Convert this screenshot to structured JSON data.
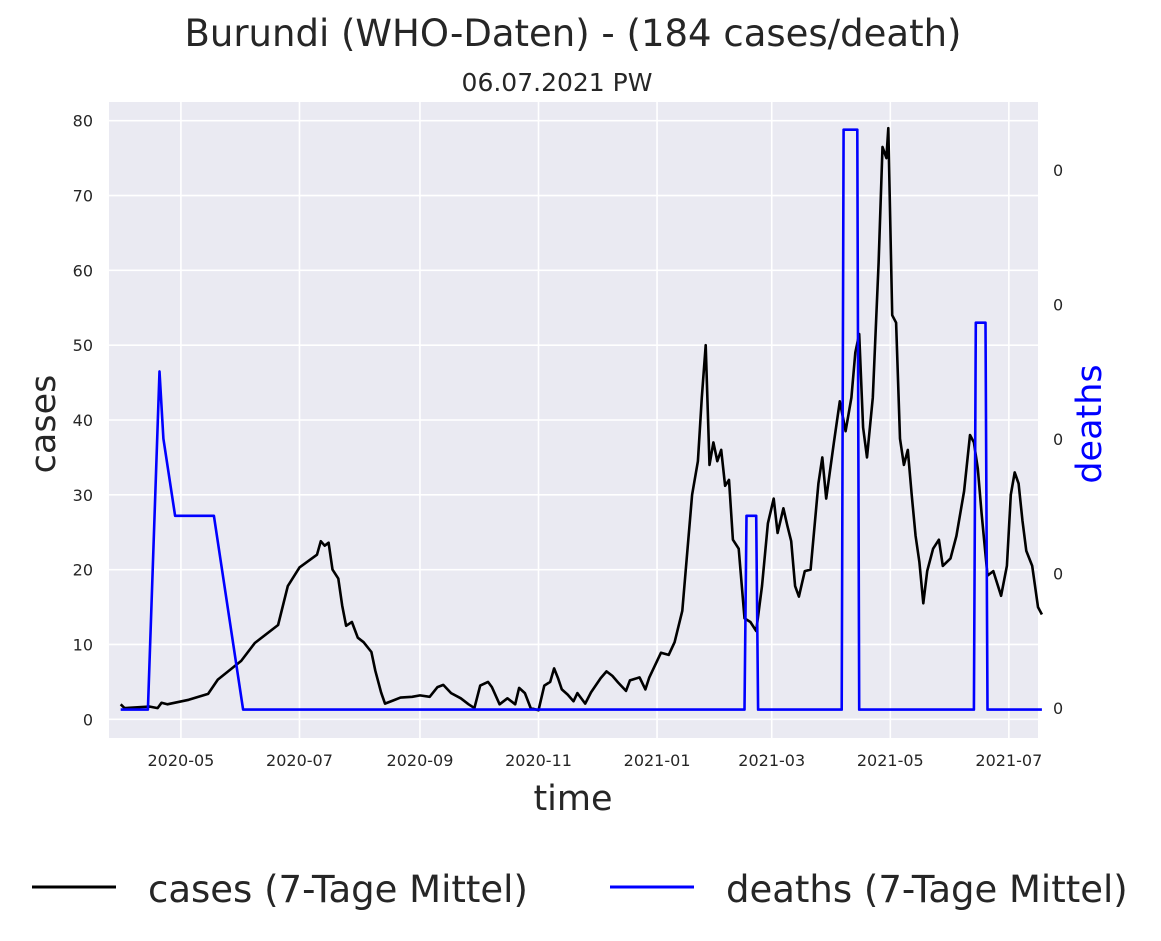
{
  "chart_data": {
    "type": "line",
    "title": "Burundi (WHO-Daten) - (184 cases/death)",
    "subtitle": "06.07.2021 PW",
    "xlabel": "time",
    "ylabel": "cases",
    "y2label": "deaths",
    "x_ticks": [
      "2020-05",
      "2020-07",
      "2020-09",
      "2020-11",
      "2021-01",
      "2021-03",
      "2021-05",
      "2021-07"
    ],
    "y_ticks": [
      "0",
      "10",
      "20",
      "30",
      "40",
      "50",
      "60",
      "70",
      "80"
    ],
    "y2_ticks": [
      "0",
      "0",
      "0",
      "0",
      "0"
    ],
    "ylim": [
      -2.5,
      82.5
    ],
    "xlim": [
      "2020-03-25",
      "2021-07-16"
    ],
    "grid": true,
    "legend_position": "bottom",
    "colors": {
      "cases": "#000000",
      "deaths": "#0000ff",
      "plot_bg": "#eaeaf2",
      "grid": "#ffffff",
      "deaths_axis_label": "#0000ff"
    },
    "series": [
      {
        "name": "cases (7-Tage Mittel)",
        "axis": "left",
        "points": [
          [
            "2020-03-31",
            2.0
          ],
          [
            "2020-04-02",
            1.5
          ],
          [
            "2020-04-15",
            1.7
          ],
          [
            "2020-04-19",
            1.5
          ],
          [
            "2020-04-21",
            2.2
          ],
          [
            "2020-04-24",
            2.0
          ],
          [
            "2020-05-05",
            2.6
          ],
          [
            "2020-05-15",
            3.4
          ],
          [
            "2020-05-20",
            5.3
          ],
          [
            "2020-06-01",
            7.8
          ],
          [
            "2020-06-08",
            10.2
          ],
          [
            "2020-06-20",
            12.6
          ],
          [
            "2020-06-25",
            17.8
          ],
          [
            "2020-07-01",
            20.3
          ],
          [
            "2020-07-10",
            22.0
          ],
          [
            "2020-07-12",
            23.8
          ],
          [
            "2020-07-14",
            23.2
          ],
          [
            "2020-07-16",
            23.6
          ],
          [
            "2020-07-18",
            20.0
          ],
          [
            "2020-07-21",
            18.8
          ],
          [
            "2020-07-23",
            15.2
          ],
          [
            "2020-07-25",
            12.5
          ],
          [
            "2020-07-28",
            13.0
          ],
          [
            "2020-07-31",
            10.9
          ],
          [
            "2020-08-03",
            10.3
          ],
          [
            "2020-08-07",
            9.0
          ],
          [
            "2020-08-09",
            6.5
          ],
          [
            "2020-08-12",
            3.6
          ],
          [
            "2020-08-14",
            2.1
          ],
          [
            "2020-08-18",
            2.5
          ],
          [
            "2020-08-22",
            2.9
          ],
          [
            "2020-08-28",
            3.0
          ],
          [
            "2020-09-01",
            3.2
          ],
          [
            "2020-09-06",
            3.0
          ],
          [
            "2020-09-10",
            4.3
          ],
          [
            "2020-09-13",
            4.6
          ],
          [
            "2020-09-17",
            3.5
          ],
          [
            "2020-09-22",
            2.8
          ],
          [
            "2020-09-26",
            2.0
          ],
          [
            "2020-09-29",
            1.5
          ],
          [
            "2020-10-02",
            4.5
          ],
          [
            "2020-10-06",
            5.0
          ],
          [
            "2020-10-08",
            4.3
          ],
          [
            "2020-10-12",
            2.0
          ],
          [
            "2020-10-16",
            2.8
          ],
          [
            "2020-10-20",
            2.0
          ],
          [
            "2020-10-22",
            4.2
          ],
          [
            "2020-10-25",
            3.5
          ],
          [
            "2020-10-28",
            1.5
          ],
          [
            "2020-11-01",
            1.2
          ],
          [
            "2020-11-04",
            4.5
          ],
          [
            "2020-11-07",
            5.0
          ],
          [
            "2020-11-09",
            6.8
          ],
          [
            "2020-11-11",
            5.5
          ],
          [
            "2020-11-13",
            4.0
          ],
          [
            "2020-11-16",
            3.3
          ],
          [
            "2020-11-19",
            2.4
          ],
          [
            "2020-11-21",
            3.5
          ],
          [
            "2020-11-25",
            2.1
          ],
          [
            "2020-11-28",
            3.6
          ],
          [
            "2020-12-03",
            5.5
          ],
          [
            "2020-12-06",
            6.4
          ],
          [
            "2020-12-09",
            5.8
          ],
          [
            "2020-12-12",
            4.9
          ],
          [
            "2020-12-16",
            3.8
          ],
          [
            "2020-12-18",
            5.2
          ],
          [
            "2020-12-23",
            5.6
          ],
          [
            "2020-12-26",
            4.0
          ],
          [
            "2020-12-28",
            5.6
          ],
          [
            "2021-01-03",
            8.9
          ],
          [
            "2021-01-07",
            8.6
          ],
          [
            "2021-01-10",
            10.3
          ],
          [
            "2021-01-14",
            14.5
          ],
          [
            "2021-01-19",
            30.0
          ],
          [
            "2021-01-22",
            34.5
          ],
          [
            "2021-01-24",
            43.0
          ],
          [
            "2021-01-26",
            50.0
          ],
          [
            "2021-01-28",
            34.0
          ],
          [
            "2021-01-30",
            37.0
          ],
          [
            "2021-02-01",
            34.5
          ],
          [
            "2021-02-03",
            36.0
          ],
          [
            "2021-02-05",
            31.2
          ],
          [
            "2021-02-07",
            32.0
          ],
          [
            "2021-02-09",
            24.0
          ],
          [
            "2021-02-12",
            22.8
          ],
          [
            "2021-02-15",
            13.5
          ],
          [
            "2021-02-18",
            13.0
          ],
          [
            "2021-02-21",
            11.8
          ],
          [
            "2021-02-24",
            17.8
          ],
          [
            "2021-02-27",
            26.2
          ],
          [
            "2021-03-02",
            29.5
          ],
          [
            "2021-03-04",
            24.9
          ],
          [
            "2021-03-07",
            28.2
          ],
          [
            "2021-03-09",
            25.9
          ],
          [
            "2021-03-11",
            23.8
          ],
          [
            "2021-03-13",
            17.8
          ],
          [
            "2021-03-15",
            16.4
          ],
          [
            "2021-03-18",
            19.8
          ],
          [
            "2021-03-21",
            20.0
          ],
          [
            "2021-03-25",
            31.5
          ],
          [
            "2021-03-27",
            35.0
          ],
          [
            "2021-03-29",
            29.5
          ],
          [
            "2021-04-02",
            37.0
          ],
          [
            "2021-04-05",
            42.5
          ],
          [
            "2021-04-08",
            38.5
          ],
          [
            "2021-04-11",
            43.0
          ],
          [
            "2021-04-13",
            49.0
          ],
          [
            "2021-04-15",
            51.5
          ],
          [
            "2021-04-17",
            39.0
          ],
          [
            "2021-04-19",
            35.0
          ],
          [
            "2021-04-22",
            43.0
          ],
          [
            "2021-04-25",
            61.0
          ],
          [
            "2021-04-27",
            76.5
          ],
          [
            "2021-04-29",
            75.0
          ],
          [
            "2021-04-30",
            79.0
          ],
          [
            "2021-05-02",
            54.0
          ],
          [
            "2021-05-04",
            53.0
          ],
          [
            "2021-05-06",
            37.5
          ],
          [
            "2021-05-08",
            34.0
          ],
          [
            "2021-05-10",
            36.0
          ],
          [
            "2021-05-12",
            30.0
          ],
          [
            "2021-05-14",
            24.5
          ],
          [
            "2021-05-16",
            21.0
          ],
          [
            "2021-05-18",
            15.5
          ],
          [
            "2021-05-20",
            19.8
          ],
          [
            "2021-05-23",
            22.8
          ],
          [
            "2021-05-26",
            24.0
          ],
          [
            "2021-05-28",
            20.5
          ],
          [
            "2021-06-01",
            21.5
          ],
          [
            "2021-06-04",
            24.5
          ],
          [
            "2021-06-08",
            30.5
          ],
          [
            "2021-06-11",
            38.0
          ],
          [
            "2021-06-13",
            37.0
          ],
          [
            "2021-06-15",
            33.5
          ],
          [
            "2021-06-17",
            27.5
          ],
          [
            "2021-06-20",
            19.2
          ],
          [
            "2021-06-23",
            19.8
          ],
          [
            "2021-06-27",
            16.5
          ],
          [
            "2021-06-30",
            20.5
          ],
          [
            "2021-07-02",
            30.0
          ],
          [
            "2021-07-04",
            33.0
          ],
          [
            "2021-07-06",
            31.5
          ],
          [
            "2021-07-08",
            26.5
          ],
          [
            "2021-07-10",
            22.5
          ],
          [
            "2021-07-13",
            20.5
          ],
          [
            "2021-07-16",
            15.0
          ],
          [
            "2021-07-18",
            14.0
          ]
        ]
      },
      {
        "name": "deaths (7-Tage Mittel)",
        "axis": "right",
        "note": "right-axis tick labels all print 0; values estimated in the left-axis scale",
        "points": [
          [
            "2020-03-31",
            1.3
          ],
          [
            "2020-04-14",
            1.3
          ],
          [
            "2020-04-20",
            46.5
          ],
          [
            "2020-04-22",
            37.5
          ],
          [
            "2020-04-28",
            27.2
          ],
          [
            "2020-05-18",
            27.2
          ],
          [
            "2020-06-02",
            1.3
          ],
          [
            "2021-02-15",
            1.3
          ],
          [
            "2021-02-16",
            27.2
          ],
          [
            "2021-02-21",
            27.2
          ],
          [
            "2021-02-22",
            1.3
          ],
          [
            "2021-04-06",
            1.3
          ],
          [
            "2021-04-07",
            78.8
          ],
          [
            "2021-04-14",
            78.8
          ],
          [
            "2021-04-15",
            1.3
          ],
          [
            "2021-06-13",
            1.3
          ],
          [
            "2021-06-14",
            53.0
          ],
          [
            "2021-06-19",
            53.0
          ],
          [
            "2021-06-20",
            1.3
          ],
          [
            "2021-07-18",
            1.3
          ]
        ]
      }
    ]
  }
}
